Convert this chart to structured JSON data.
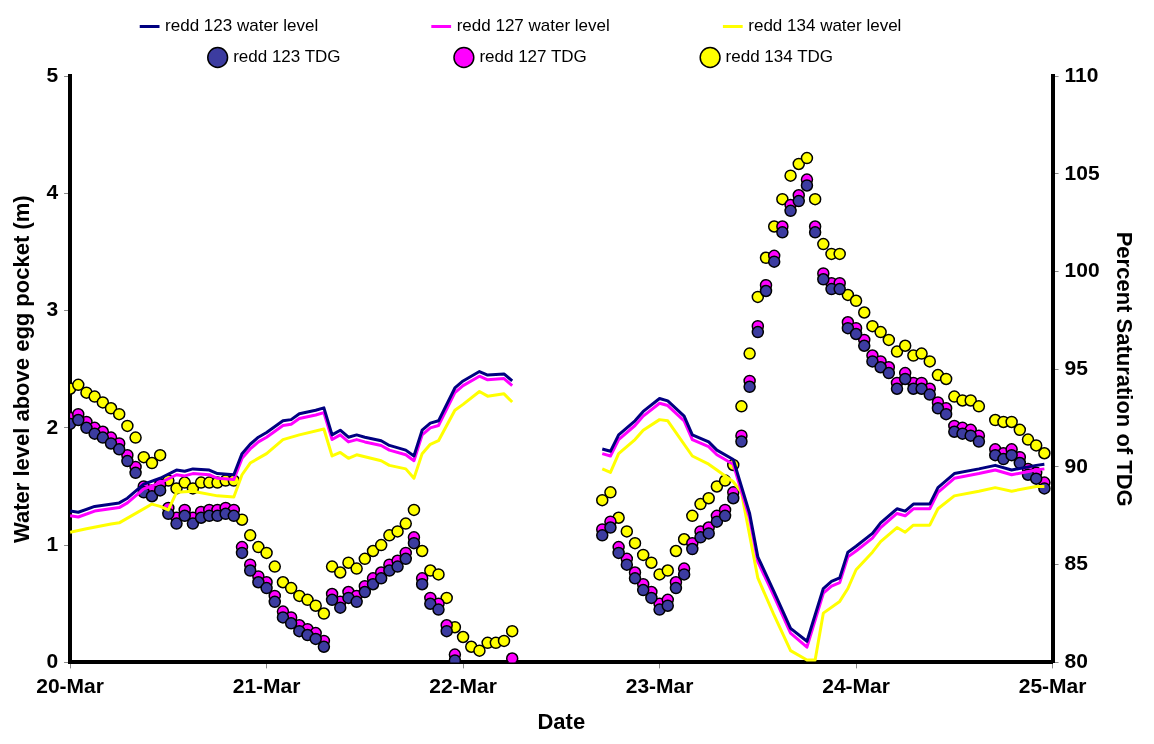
{
  "chart_data": {
    "type": "line",
    "xlabel": "Date",
    "ylabel": "Water level above egg pocket (m)",
    "y2label": "Percent Saturation of TDG",
    "xlim": [
      "--03-20",
      "--03-25"
    ],
    "xticks": [
      {
        "value": "--03-20",
        "label": "20-Mar"
      },
      {
        "value": "--03-21",
        "label": "21-Mar"
      },
      {
        "value": "--03-22",
        "label": "22-Mar"
      },
      {
        "value": "--03-23",
        "label": "23-Mar"
      },
      {
        "value": "--03-24",
        "label": "24-Mar"
      },
      {
        "value": "--03-25",
        "label": "25-Mar"
      }
    ],
    "ylim": [
      0,
      5
    ],
    "yticks": [
      0,
      1,
      2,
      3,
      4,
      5
    ],
    "y2lim": [
      80,
      110
    ],
    "y2ticks": [
      80,
      85,
      90,
      95,
      100,
      105,
      110
    ],
    "grid": false,
    "legend": "top",
    "line_style": "solid",
    "series": [
      {
        "name": "redd 123 water level",
        "type": "line",
        "color": "#000080",
        "marker": "none",
        "x": [
          "--03-20T00:00",
          "--03-20T01:00",
          "--03-20T03:00",
          "--03-20T06:00",
          "--03-20T07:00",
          "--03-20T09:00",
          "--03-20T11:00",
          "--03-20T13:00",
          "--03-20T14:00",
          "--03-20T15:00",
          "--03-20T17:00",
          "--03-20T18:00",
          "--03-20T20:00",
          "--03-20T21:00",
          "--03-20T22:00",
          "--03-20T23:00",
          "--03-21T00:00",
          "--03-21T02:00",
          "--03-21T03:00",
          "--03-21T04:00",
          "--03-21T06:00",
          "--03-21T07:00",
          "--03-21T08:00",
          "--03-21T09:00",
          "--03-21T10:00",
          "--03-21T11:00",
          "--03-21T12:00",
          "--03-21T14:00",
          "--03-21T15:00",
          "--03-21T17:00",
          "--03-21T18:00",
          "--03-21T19:00",
          "--03-21T20:00",
          "--03-21T21:00",
          "--03-21T23:00",
          "--03-22T00:00",
          "--03-22T02:00",
          "--03-22T03:00",
          "--03-22T05:00",
          "--03-22T06:00",
          "--03-22T12:00",
          "--03-22T17:00",
          "--03-22T18:00",
          "--03-22T19:00",
          "--03-22T21:00",
          "--03-22T22:00",
          "--03-23T00:00",
          "--03-23T01:00",
          "--03-23T03:00",
          "--03-23T04:00",
          "--03-23T06:00",
          "--03-23T07:00",
          "--03-23T09:00",
          "--03-23T11:00",
          "--03-23T12:00",
          "--03-23T14:00",
          "--03-23T16:00",
          "--03-23T18:00",
          "--03-23T20:00",
          "--03-23T21:00",
          "--03-23T22:00",
          "--03-23T23:00",
          "--03-24T00:00",
          "--03-24T02:00",
          "--03-24T03:00",
          "--03-24T05:00",
          "--03-24T06:00",
          "--03-24T07:00",
          "--03-24T09:00",
          "--03-24T10:00",
          "--03-24T12:00",
          "--03-24T15:00",
          "--03-24T17:00",
          "--03-24T19:00",
          "--03-24T22:00",
          "--03-24T23:00"
        ],
        "values": [
          1.29,
          1.28,
          1.33,
          1.36,
          1.4,
          1.52,
          1.57,
          1.64,
          1.63,
          1.65,
          1.64,
          1.61,
          1.6,
          1.78,
          1.86,
          1.92,
          1.96,
          2.06,
          2.07,
          2.12,
          2.15,
          2.17,
          1.94,
          1.98,
          1.92,
          1.94,
          1.92,
          1.89,
          1.85,
          1.81,
          1.76,
          1.98,
          2.04,
          2.06,
          2.34,
          2.4,
          2.48,
          2.45,
          2.46,
          2.4,
          null,
          1.82,
          1.8,
          1.94,
          2.06,
          2.14,
          2.25,
          2.23,
          2.1,
          1.94,
          1.88,
          1.81,
          1.73,
          1.27,
          0.9,
          0.6,
          0.29,
          0.18,
          0.63,
          0.69,
          0.72,
          0.94,
          0.99,
          1.1,
          1.19,
          1.31,
          1.29,
          1.35,
          1.35,
          1.49,
          1.61,
          1.65,
          1.68,
          1.64,
          1.68,
          1.69
        ]
      },
      {
        "name": "redd 127 water level",
        "type": "line",
        "color": "#ff00ff",
        "marker": "none",
        "x": [
          "--03-20T00:00",
          "--03-20T01:00",
          "--03-20T03:00",
          "--03-20T06:00",
          "--03-20T07:00",
          "--03-20T09:00",
          "--03-20T11:00",
          "--03-20T13:00",
          "--03-20T14:00",
          "--03-20T15:00",
          "--03-20T17:00",
          "--03-20T18:00",
          "--03-20T20:00",
          "--03-20T21:00",
          "--03-20T22:00",
          "--03-20T23:00",
          "--03-21T00:00",
          "--03-21T02:00",
          "--03-21T03:00",
          "--03-21T04:00",
          "--03-21T06:00",
          "--03-21T07:00",
          "--03-21T08:00",
          "--03-21T09:00",
          "--03-21T10:00",
          "--03-21T11:00",
          "--03-21T12:00",
          "--03-21T14:00",
          "--03-21T15:00",
          "--03-21T17:00",
          "--03-21T18:00",
          "--03-21T19:00",
          "--03-21T20:00",
          "--03-21T21:00",
          "--03-21T23:00",
          "--03-22T00:00",
          "--03-22T02:00",
          "--03-22T03:00",
          "--03-22T05:00",
          "--03-22T06:00",
          "--03-22T12:00",
          "--03-22T17:00",
          "--03-22T18:00",
          "--03-22T19:00",
          "--03-22T21:00",
          "--03-22T22:00",
          "--03-23T00:00",
          "--03-23T01:00",
          "--03-23T03:00",
          "--03-23T04:00",
          "--03-23T06:00",
          "--03-23T07:00",
          "--03-23T09:00",
          "--03-23T11:00",
          "--03-23T12:00",
          "--03-23T14:00",
          "--03-23T16:00",
          "--03-23T18:00",
          "--03-23T20:00",
          "--03-23T21:00",
          "--03-23T22:00",
          "--03-23T23:00",
          "--03-24T00:00",
          "--03-24T02:00",
          "--03-24T03:00",
          "--03-24T05:00",
          "--03-24T06:00",
          "--03-24T07:00",
          "--03-24T09:00",
          "--03-24T10:00",
          "--03-24T12:00",
          "--03-24T15:00",
          "--03-24T17:00",
          "--03-24T19:00",
          "--03-24T22:00",
          "--03-24T23:00"
        ],
        "values": [
          1.25,
          1.24,
          1.29,
          1.32,
          1.36,
          1.48,
          1.53,
          1.6,
          1.59,
          1.61,
          1.6,
          1.57,
          1.56,
          1.74,
          1.82,
          1.88,
          1.92,
          2.02,
          2.03,
          2.08,
          2.11,
          2.13,
          1.9,
          1.94,
          1.88,
          1.9,
          1.88,
          1.85,
          1.81,
          1.77,
          1.72,
          1.94,
          2,
          2.02,
          2.3,
          2.36,
          2.44,
          2.41,
          2.42,
          2.36,
          null,
          1.78,
          1.76,
          1.9,
          2.02,
          2.1,
          2.21,
          2.19,
          2.06,
          1.9,
          1.84,
          1.77,
          1.69,
          1.23,
          0.86,
          0.56,
          0.25,
          0.13,
          0.59,
          0.65,
          0.68,
          0.9,
          0.95,
          1.06,
          1.15,
          1.27,
          1.25,
          1.31,
          1.31,
          1.45,
          1.57,
          1.61,
          1.64,
          1.6,
          1.64,
          1.65
        ]
      },
      {
        "name": "redd 134 water level",
        "type": "line",
        "color": "#ffff00",
        "marker": "none",
        "x": [
          "--03-20T00:00",
          "--03-20T02:00",
          "--03-20T05:00",
          "--03-20T06:00",
          "--03-20T10:00",
          "--03-20T11:00",
          "--03-20T12:00",
          "--03-20T13:00",
          "--03-20T15:00",
          "--03-20T18:00",
          "--03-20T20:00",
          "--03-20T21:00",
          "--03-20T22:00",
          "--03-21T00:00",
          "--03-21T02:00",
          "--03-21T04:00",
          "--03-21T07:00",
          "--03-21T08:00",
          "--03-21T09:00",
          "--03-21T10:00",
          "--03-21T11:00",
          "--03-21T14:00",
          "--03-21T15:00",
          "--03-21T17:00",
          "--03-21T18:00",
          "--03-21T19:00",
          "--03-21T20:00",
          "--03-21T21:00",
          "--03-21T23:00",
          "--03-22T00:00",
          "--03-22T02:00",
          "--03-22T03:00",
          "--03-22T05:00",
          "--03-22T06:00",
          "--03-22T12:00",
          "--03-22T17:00",
          "--03-22T18:00",
          "--03-22T19:00",
          "--03-22T21:00",
          "--03-22T22:00",
          "--03-23T00:00",
          "--03-23T01:00",
          "--03-23T04:00",
          "--03-23T06:00",
          "--03-23T07:00",
          "--03-23T09:00",
          "--03-23T10:00",
          "--03-23T12:00",
          "--03-23T14:00",
          "--03-23T16:00",
          "--03-23T18:00",
          "--03-23T19:00",
          "--03-23T20:00",
          "--03-23T22:00",
          "--03-23T23:00",
          "--03-24T00:00",
          "--03-24T02:00",
          "--03-24T03:00",
          "--03-24T05:00",
          "--03-24T06:00",
          "--03-24T07:00",
          "--03-24T09:00",
          "--03-24T10:00",
          "--03-24T12:00",
          "--03-24T15:00",
          "--03-24T17:00",
          "--03-24T19:00",
          "--03-24T22:00",
          "--03-24T23:00"
        ],
        "values": [
          1.11,
          1.14,
          1.18,
          1.19,
          1.35,
          1.33,
          1.3,
          1.45,
          1.46,
          1.42,
          1.41,
          1.6,
          1.7,
          1.78,
          1.9,
          1.94,
          1.99,
          1.76,
          1.79,
          1.74,
          1.77,
          1.72,
          1.68,
          1.65,
          1.57,
          1.78,
          1.86,
          1.89,
          2.15,
          2.2,
          2.31,
          2.27,
          2.29,
          2.22,
          null,
          1.65,
          1.62,
          1.78,
          1.9,
          1.98,
          2.07,
          2.06,
          1.76,
          1.69,
          1.64,
          1.54,
          1.45,
          0.72,
          0.4,
          0.1,
          0.02,
          0.02,
          0.42,
          0.52,
          0.63,
          0.79,
          0.94,
          1.03,
          1.15,
          1.11,
          1.17,
          1.17,
          1.31,
          1.42,
          1.46,
          1.49,
          1.46,
          1.5,
          1.5
        ]
      },
      {
        "name": "redd 123 TDG",
        "type": "scatter",
        "axis": "y2",
        "color": "#3c3ca0",
        "marker": "circle",
        "x": [
          "--03-20T00:00",
          "--03-20T01:00",
          "--03-20T02:00",
          "--03-20T03:00",
          "--03-20T04:00",
          "--03-20T05:00",
          "--03-20T06:00",
          "--03-20T07:00",
          "--03-20T08:00",
          "--03-20T09:00",
          "--03-20T10:00",
          "--03-20T11:00",
          "--03-20T12:00",
          "--03-20T13:00",
          "--03-20T14:00",
          "--03-20T15:00",
          "--03-20T16:00",
          "--03-20T17:00",
          "--03-20T18:00",
          "--03-20T19:00",
          "--03-20T20:00",
          "--03-20T21:00",
          "--03-20T22:00",
          "--03-20T23:00",
          "--03-21T00:00",
          "--03-21T01:00",
          "--03-21T02:00",
          "--03-21T03:00",
          "--03-21T04:00",
          "--03-21T05:00",
          "--03-21T06:00",
          "--03-21T07:00",
          "--03-21T08:00",
          "--03-21T09:00",
          "--03-21T10:00",
          "--03-21T11:00",
          "--03-21T12:00",
          "--03-21T13:00",
          "--03-21T14:00",
          "--03-21T15:00",
          "--03-21T16:00",
          "--03-21T17:00",
          "--03-21T18:00",
          "--03-21T19:00",
          "--03-21T20:00",
          "--03-21T21:00",
          "--03-21T22:00",
          "--03-21T23:00",
          "--03-22T17:00",
          "--03-22T18:00",
          "--03-22T19:00",
          "--03-22T20:00",
          "--03-22T21:00",
          "--03-22T22:00",
          "--03-22T23:00",
          "--03-23T00:00",
          "--03-23T01:00",
          "--03-23T02:00",
          "--03-23T03:00",
          "--03-23T04:00",
          "--03-23T05:00",
          "--03-23T06:00",
          "--03-23T07:00",
          "--03-23T08:00",
          "--03-23T09:00",
          "--03-23T10:00",
          "--03-23T11:00",
          "--03-23T12:00",
          "--03-23T13:00",
          "--03-23T14:00",
          "--03-23T15:00",
          "--03-23T16:00",
          "--03-23T17:00",
          "--03-23T18:00",
          "--03-23T19:00",
          "--03-23T20:00",
          "--03-23T21:00",
          "--03-23T22:00",
          "--03-23T23:00",
          "--03-24T00:00",
          "--03-24T01:00",
          "--03-24T02:00",
          "--03-24T03:00",
          "--03-24T04:00",
          "--03-24T05:00",
          "--03-24T06:00",
          "--03-24T07:00",
          "--03-24T08:00",
          "--03-24T09:00",
          "--03-24T10:00",
          "--03-24T11:00",
          "--03-24T12:00",
          "--03-24T13:00",
          "--03-24T14:00",
          "--03-24T15:00",
          "--03-24T17:00",
          "--03-24T18:00",
          "--03-24T19:00",
          "--03-24T20:00",
          "--03-24T21:00",
          "--03-24T22:00",
          "--03-24T23:00"
        ],
        "values": [
          92.2,
          92.4,
          92.0,
          91.7,
          91.5,
          91.2,
          90.9,
          90.3,
          89.7,
          88.7,
          88.5,
          88.8,
          87.6,
          87.1,
          87.5,
          87.1,
          87.4,
          87.5,
          87.5,
          87.6,
          87.5,
          85.6,
          84.7,
          84.1,
          83.8,
          83.1,
          82.3,
          82.0,
          81.6,
          81.4,
          81.2,
          80.8,
          83.2,
          82.8,
          83.3,
          83.1,
          83.6,
          84.0,
          84.3,
          84.7,
          84.9,
          85.3,
          86.1,
          84.0,
          83.0,
          82.7,
          81.6,
          80.1,
          86.5,
          86.9,
          85.6,
          85.0,
          84.3,
          83.7,
          83.3,
          82.7,
          82.9,
          83.8,
          84.5,
          85.8,
          86.4,
          86.6,
          87.2,
          87.5,
          88.4,
          91.3,
          94.1,
          96.9,
          99.0,
          100.5,
          102.0,
          103.1,
          103.6,
          104.4,
          102.0,
          99.6,
          99.1,
          99.1,
          97.1,
          96.8,
          96.2,
          95.4,
          95.1,
          94.8,
          94.0,
          94.5,
          94.0,
          94.0,
          93.7,
          93.0,
          92.7,
          91.8,
          91.7,
          91.6,
          91.3,
          90.6,
          90.4,
          90.6,
          90.2,
          89.6,
          89.4,
          88.9
        ]
      },
      {
        "name": "redd 127 TDG",
        "type": "scatter",
        "axis": "y2",
        "color": "#ff00ff",
        "marker": "circle",
        "x": [
          "--03-20T00:00",
          "--03-20T01:00",
          "--03-20T02:00",
          "--03-20T03:00",
          "--03-20T04:00",
          "--03-20T05:00",
          "--03-20T06:00",
          "--03-20T07:00",
          "--03-20T08:00",
          "--03-20T09:00",
          "--03-20T10:00",
          "--03-20T11:00",
          "--03-20T12:00",
          "--03-20T13:00",
          "--03-20T14:00",
          "--03-20T15:00",
          "--03-20T16:00",
          "--03-20T17:00",
          "--03-20T18:00",
          "--03-20T19:00",
          "--03-20T20:00",
          "--03-20T21:00",
          "--03-20T22:00",
          "--03-20T23:00",
          "--03-21T00:00",
          "--03-21T01:00",
          "--03-21T02:00",
          "--03-21T03:00",
          "--03-21T04:00",
          "--03-21T05:00",
          "--03-21T06:00",
          "--03-21T07:00",
          "--03-21T08:00",
          "--03-21T09:00",
          "--03-21T10:00",
          "--03-21T11:00",
          "--03-21T12:00",
          "--03-21T13:00",
          "--03-21T14:00",
          "--03-21T15:00",
          "--03-21T16:00",
          "--03-21T17:00",
          "--03-21T18:00",
          "--03-21T19:00",
          "--03-21T20:00",
          "--03-21T21:00",
          "--03-21T22:00",
          "--03-21T23:00",
          "--03-22T06:00",
          "--03-22T17:00",
          "--03-22T18:00",
          "--03-22T19:00",
          "--03-22T20:00",
          "--03-22T21:00",
          "--03-22T22:00",
          "--03-22T23:00",
          "--03-23T00:00",
          "--03-23T01:00",
          "--03-23T02:00",
          "--03-23T03:00",
          "--03-23T04:00",
          "--03-23T05:00",
          "--03-23T06:00",
          "--03-23T07:00",
          "--03-23T08:00",
          "--03-23T09:00",
          "--03-23T10:00",
          "--03-23T11:00",
          "--03-23T12:00",
          "--03-23T13:00",
          "--03-23T14:00",
          "--03-23T15:00",
          "--03-23T16:00",
          "--03-23T17:00",
          "--03-23T18:00",
          "--03-23T19:00",
          "--03-23T20:00",
          "--03-23T21:00",
          "--03-23T22:00",
          "--03-23T23:00",
          "--03-24T00:00",
          "--03-24T01:00",
          "--03-24T02:00",
          "--03-24T03:00",
          "--03-24T04:00",
          "--03-24T05:00",
          "--03-24T06:00",
          "--03-24T07:00",
          "--03-24T08:00",
          "--03-24T09:00",
          "--03-24T10:00",
          "--03-24T11:00",
          "--03-24T12:00",
          "--03-24T13:00",
          "--03-24T14:00",
          "--03-24T15:00",
          "--03-24T17:00",
          "--03-24T18:00",
          "--03-24T19:00",
          "--03-24T20:00",
          "--03-24T21:00",
          "--03-24T22:00",
          "--03-24T23:00"
        ],
        "values": [
          92.5,
          92.7,
          92.3,
          92.0,
          91.8,
          91.5,
          91.2,
          90.6,
          90.0,
          89.0,
          88.8,
          89.1,
          87.9,
          87.4,
          87.8,
          87.4,
          87.7,
          87.8,
          87.8,
          87.9,
          87.8,
          85.9,
          85.0,
          84.4,
          84.1,
          83.4,
          82.6,
          82.3,
          81.9,
          81.7,
          81.5,
          81.1,
          83.5,
          83.1,
          83.6,
          83.4,
          83.9,
          84.3,
          84.6,
          85.0,
          85.2,
          85.6,
          86.4,
          84.3,
          83.3,
          83.0,
          81.9,
          80.4,
          80.2,
          86.8,
          87.2,
          85.9,
          85.3,
          84.6,
          84.0,
          83.6,
          83.0,
          83.2,
          84.1,
          84.8,
          86.1,
          86.7,
          86.9,
          87.5,
          87.8,
          88.7,
          91.6,
          94.4,
          97.2,
          99.3,
          100.8,
          102.3,
          103.4,
          103.9,
          104.7,
          102.3,
          99.9,
          99.4,
          99.4,
          97.4,
          97.1,
          96.5,
          95.7,
          95.4,
          95.1,
          94.3,
          94.8,
          94.3,
          94.3,
          94.0,
          93.3,
          93.0,
          92.1,
          92.0,
          91.9,
          91.6,
          90.9,
          90.7,
          90.9,
          90.5,
          89.9,
          89.7,
          89.2
        ]
      },
      {
        "name": "redd 134 TDG",
        "type": "scatter",
        "axis": "y2",
        "color": "#ffff00",
        "marker": "circle",
        "x": [
          "--03-20T00:00",
          "--03-20T01:00",
          "--03-20T02:00",
          "--03-20T03:00",
          "--03-20T04:00",
          "--03-20T05:00",
          "--03-20T06:00",
          "--03-20T07:00",
          "--03-20T08:00",
          "--03-20T09:00",
          "--03-20T10:00",
          "--03-20T11:00",
          "--03-20T12:00",
          "--03-20T13:00",
          "--03-20T14:00",
          "--03-20T15:00",
          "--03-20T16:00",
          "--03-20T17:00",
          "--03-20T18:00",
          "--03-20T19:00",
          "--03-20T20:00",
          "--03-20T21:00",
          "--03-20T22:00",
          "--03-20T23:00",
          "--03-21T00:00",
          "--03-21T01:00",
          "--03-21T02:00",
          "--03-21T03:00",
          "--03-21T04:00",
          "--03-21T05:00",
          "--03-21T06:00",
          "--03-21T07:00",
          "--03-21T08:00",
          "--03-21T09:00",
          "--03-21T10:00",
          "--03-21T11:00",
          "--03-21T12:00",
          "--03-21T13:00",
          "--03-21T14:00",
          "--03-21T15:00",
          "--03-21T16:00",
          "--03-21T17:00",
          "--03-21T18:00",
          "--03-21T19:00",
          "--03-21T20:00",
          "--03-21T21:00",
          "--03-21T22:00",
          "--03-21T23:00",
          "--03-22T00:00",
          "--03-22T01:00",
          "--03-22T02:00",
          "--03-22T03:00",
          "--03-22T04:00",
          "--03-22T05:00",
          "--03-22T06:00",
          "--03-22T17:00",
          "--03-22T18:00",
          "--03-22T19:00",
          "--03-22T20:00",
          "--03-22T21:00",
          "--03-22T22:00",
          "--03-22T23:00",
          "--03-23T00:00",
          "--03-23T01:00",
          "--03-23T02:00",
          "--03-23T03:00",
          "--03-23T04:00",
          "--03-23T05:00",
          "--03-23T06:00",
          "--03-23T07:00",
          "--03-23T08:00",
          "--03-23T09:00",
          "--03-23T10:00",
          "--03-23T11:00",
          "--03-23T12:00",
          "--03-23T13:00",
          "--03-23T14:00",
          "--03-23T15:00",
          "--03-23T16:00",
          "--03-23T17:00",
          "--03-23T18:00",
          "--03-23T19:00",
          "--03-23T20:00",
          "--03-23T21:00",
          "--03-23T22:00",
          "--03-23T23:00",
          "--03-24T00:00",
          "--03-24T01:00",
          "--03-24T02:00",
          "--03-24T03:00",
          "--03-24T04:00",
          "--03-24T05:00",
          "--03-24T06:00",
          "--03-24T07:00",
          "--03-24T08:00",
          "--03-24T09:00",
          "--03-24T10:00",
          "--03-24T11:00",
          "--03-24T12:00",
          "--03-24T13:00",
          "--03-24T14:00",
          "--03-24T15:00",
          "--03-24T17:00",
          "--03-24T18:00",
          "--03-24T19:00",
          "--03-24T20:00",
          "--03-24T21:00",
          "--03-24T22:00",
          "--03-24T23:00"
        ],
        "values": [
          94.0,
          94.2,
          93.8,
          93.6,
          93.3,
          93.0,
          92.7,
          92.1,
          91.5,
          90.5,
          90.2,
          90.6,
          89.3,
          88.9,
          89.2,
          88.9,
          89.2,
          89.2,
          89.2,
          89.3,
          89.3,
          87.3,
          86.5,
          85.9,
          85.6,
          84.9,
          84.1,
          83.8,
          83.4,
          83.2,
          82.9,
          82.5,
          84.9,
          84.6,
          85.1,
          84.8,
          85.3,
          85.7,
          86.0,
          86.5,
          86.7,
          87.1,
          87.8,
          85.7,
          84.7,
          84.5,
          83.3,
          81.8,
          81.3,
          80.8,
          80.6,
          81.0,
          81.0,
          81.1,
          81.6,
          88.3,
          88.7,
          87.4,
          86.7,
          86.1,
          85.5,
          85.1,
          84.5,
          84.7,
          85.7,
          86.3,
          87.5,
          88.1,
          88.4,
          89.0,
          89.3,
          90.1,
          93.1,
          95.8,
          98.7,
          100.7,
          102.3,
          103.7,
          104.9,
          105.5,
          105.8,
          103.7,
          101.4,
          100.9,
          100.9,
          98.8,
          98.5,
          97.9,
          97.2,
          96.9,
          96.5,
          95.9,
          96.2,
          95.7,
          95.8,
          95.4,
          94.7,
          94.5,
          93.6,
          93.4,
          93.4,
          93.1,
          92.4,
          92.3,
          92.3,
          91.9,
          91.4,
          91.1,
          90.7
        ]
      }
    ]
  }
}
